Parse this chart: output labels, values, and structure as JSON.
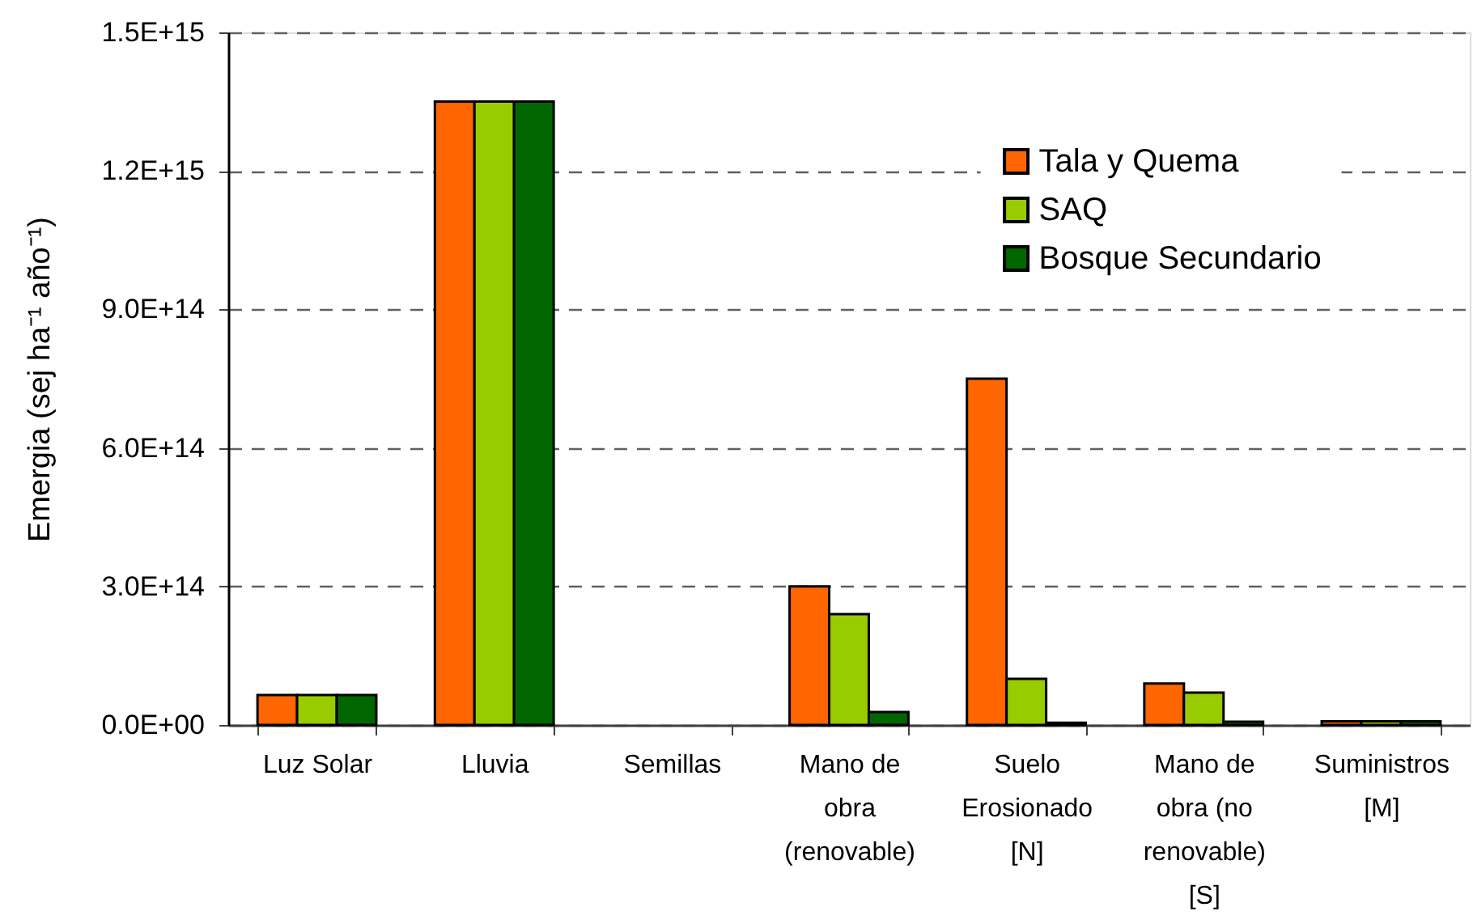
{
  "chart_data": {
    "type": "bar",
    "ylabel": "Emergia (sej ha⁻¹ año⁻¹)",
    "categories": [
      "Luz Solar",
      "Lluvia",
      "Semillas",
      "Mano de obra (renovable)",
      "Suelo Erosionado [N]",
      "Mano de obra (no renovable) [S]",
      "Suministros [M]"
    ],
    "series": [
      {
        "name": "Tala y Quema",
        "color": "#ff6600",
        "values": [
          65000000000000.0,
          1350000000000000.0,
          null,
          300000000000000.0,
          750000000000000.0,
          90000000000000.0,
          8000000000000.0
        ]
      },
      {
        "name": "SAQ",
        "color": "#99cc00",
        "values": [
          65000000000000.0,
          1350000000000000.0,
          null,
          240000000000000.0,
          100000000000000.0,
          70000000000000.0,
          8000000000000.0
        ]
      },
      {
        "name": "Bosque Secundario",
        "color": "#006600",
        "values": [
          65000000000000.0,
          1350000000000000.0,
          null,
          28000000000000.0,
          5000000000000.0,
          7000000000000.0,
          8000000000000.0
        ]
      }
    ],
    "ylim": [
      0,
      1500000000000000.0
    ],
    "yticks": [
      {
        "value": 0,
        "label": "0.0E+00"
      },
      {
        "value": 300000000000000.0,
        "label": "3.0E+14"
      },
      {
        "value": 600000000000000.0,
        "label": "6.0E+14"
      },
      {
        "value": 900000000000000.0,
        "label": "9.0E+14"
      },
      {
        "value": 1200000000000000.0,
        "label": "1.2E+15"
      },
      {
        "value": 1500000000000000.0,
        "label": "1.5E+15"
      }
    ],
    "grid": "y",
    "legend": "top right"
  }
}
